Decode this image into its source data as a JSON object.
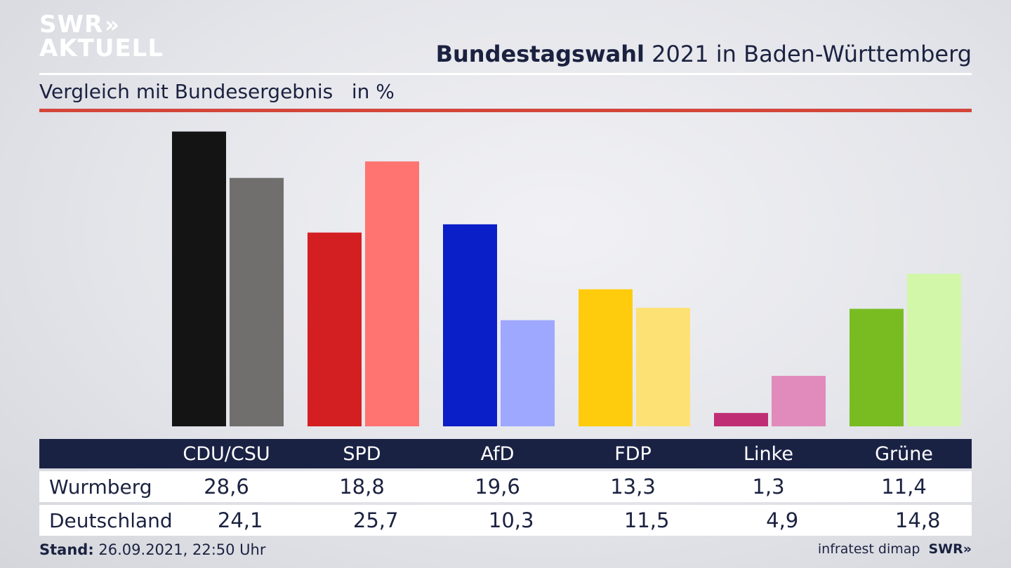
{
  "brand": {
    "line1": "SWR",
    "chevrons": "»",
    "line2": "AKTUELL"
  },
  "header": {
    "title_bold": "Bundestagswahl",
    "title_rest": " 2021 in Baden-Württemberg",
    "subtitle": "Vergleich mit Bundesergebnis   in %"
  },
  "footer": {
    "stand_label": "Stand:",
    "stand_value": " 26.09.2021, 22:50 Uhr",
    "source": "infratest dimap",
    "swr": "SWR»"
  },
  "chart_data": {
    "type": "bar",
    "categories": [
      "CDU/CSU",
      "SPD",
      "AfD",
      "FDP",
      "Linke",
      "Grüne"
    ],
    "series": [
      {
        "name": "Wurmberg",
        "values": [
          28.6,
          18.8,
          19.6,
          13.3,
          1.3,
          11.4
        ],
        "colors": [
          "#141414",
          "#d41f22",
          "#0a1fc8",
          "#ffcc0d",
          "#bf2e74",
          "#78bc22"
        ]
      },
      {
        "name": "Deutschland",
        "values": [
          24.1,
          25.7,
          10.3,
          11.5,
          4.9,
          14.8
        ],
        "colors": [
          "#706f6d",
          "#ff7470",
          "#9ea8ff",
          "#fde175",
          "#e08bbb",
          "#d2f7a8"
        ]
      }
    ],
    "table": {
      "headers": [
        "CDU/CSU",
        "SPD",
        "AfD",
        "FDP",
        "Linke",
        "Grüne"
      ],
      "rows": [
        {
          "label": "Wurmberg",
          "values": [
            "28,6",
            "18,8",
            "19,6",
            "13,3",
            "1,3",
            "11,4"
          ]
        },
        {
          "label": "Deutschland",
          "values": [
            "24,1",
            "25,7",
            "10,3",
            "11,5",
            "4,9",
            "14,8"
          ]
        }
      ]
    }
  }
}
